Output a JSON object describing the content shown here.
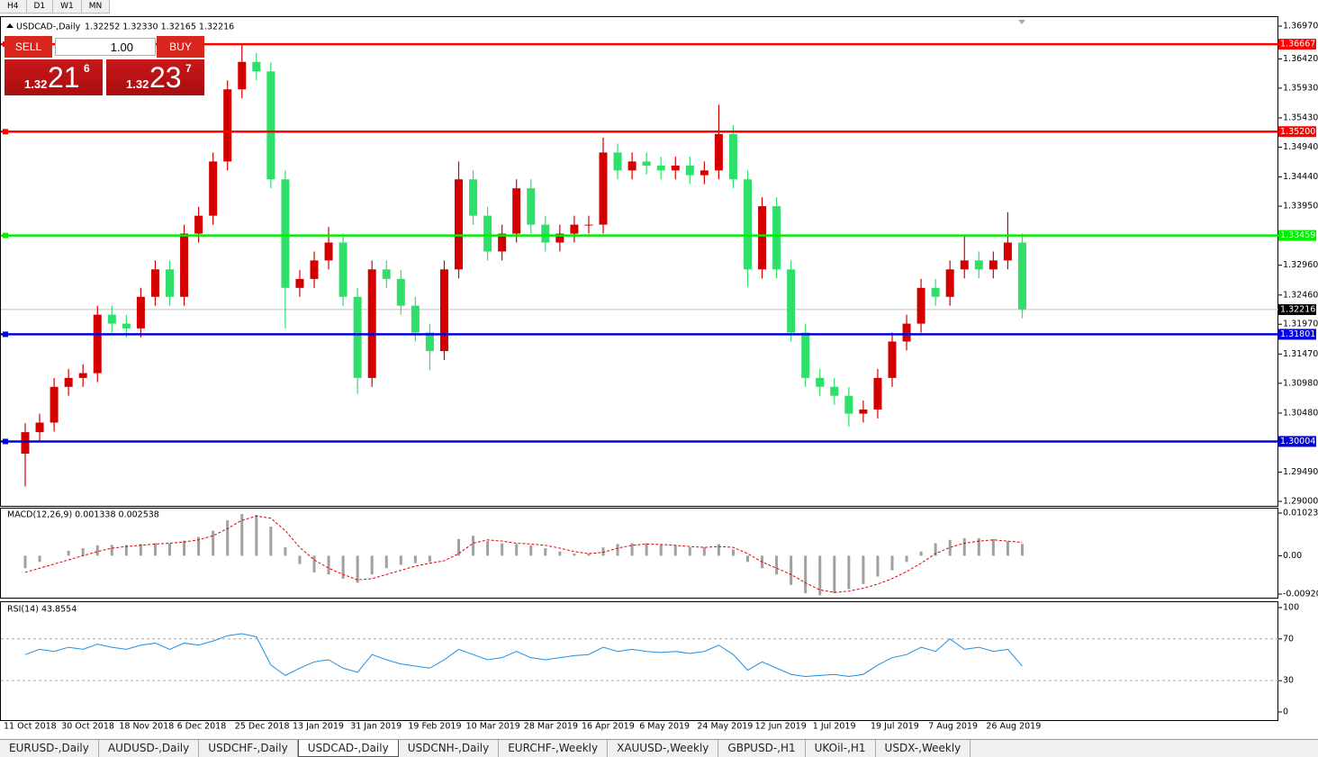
{
  "timeframes": [
    "H4",
    "D1",
    "W1",
    "MN"
  ],
  "trade_panel": {
    "sell": "SELL",
    "lot": "1.00",
    "buy": "BUY",
    "bid": {
      "big": "1.32",
      "main": "21",
      "pip": "6"
    },
    "ask": {
      "big": "1.32",
      "main": "23",
      "pip": "7"
    }
  },
  "tabs": [
    "EURUSD-,Daily",
    "AUDUSD-,Daily",
    "USDCHF-,Daily",
    "USDCAD-,Daily",
    "USDCNH-,Daily",
    "EURCHF-,Weekly",
    "XAUUSD-,Weekly",
    "GBPUSD-,H1",
    "UKOil-,H1",
    "USDX-,Weekly"
  ],
  "active_tab": 3,
  "chart_data": [
    {
      "type": "candlestick",
      "title": "USDCAD-,Daily",
      "quote": "1.32252 1.32330 1.32165 1.32216",
      "categories": [
        "11 Oct 2018",
        null,
        null,
        null,
        "30 Oct 2018",
        null,
        null,
        null,
        "18 Nov 2018",
        null,
        null,
        null,
        "6 Dec 2018",
        null,
        null,
        null,
        "25 Dec 2018",
        null,
        null,
        null,
        "13 Jan 2019",
        null,
        null,
        null,
        "31 Jan 2019",
        null,
        null,
        null,
        "19 Feb 2019",
        null,
        null,
        null,
        "10 Mar 2019",
        null,
        null,
        null,
        "28 Mar 2019",
        null,
        null,
        null,
        "16 Apr 2019",
        null,
        null,
        null,
        "6 May 2019",
        null,
        null,
        null,
        "24 May 2019",
        null,
        null,
        null,
        "12 Jun 2019",
        null,
        null,
        null,
        "1 Jul 2019",
        null,
        null,
        null,
        "19 Jul 2019",
        null,
        null,
        null,
        "7 Aug 2019",
        null,
        null,
        null,
        "26 Aug 2019",
        null
      ],
      "open": [
        1.298,
        1.3016,
        1.3032,
        1.3092,
        1.3107,
        1.3115,
        1.3213,
        1.3198,
        1.319,
        1.3243,
        1.3289,
        1.3243,
        1.3349,
        1.3379,
        1.347,
        1.3591,
        1.3637,
        1.3621,
        1.344,
        1.3258,
        1.3273,
        1.3304,
        1.3334,
        1.3243,
        1.3107,
        1.3289,
        1.3273,
        1.3228,
        1.3183,
        1.3152,
        1.3289,
        1.344,
        1.3379,
        1.3319,
        1.3349,
        1.3425,
        1.3364,
        1.3334,
        1.3349,
        1.3364,
        1.3364,
        1.3485,
        1.3455,
        1.347,
        1.3463,
        1.3455,
        1.3463,
        1.3447,
        1.3455,
        1.3516,
        1.344,
        1.3289,
        1.3395,
        1.3289,
        1.3183,
        1.3107,
        1.3092,
        1.3077,
        1.3047,
        1.3054,
        1.3107,
        1.3168,
        1.3198,
        1.3258,
        1.3243,
        1.3289,
        1.3304,
        1.3289,
        1.3304,
        1.3334
      ],
      "high": [
        1.3031,
        1.3047,
        1.3107,
        1.3122,
        1.313,
        1.3228,
        1.3228,
        1.3213,
        1.3258,
        1.3304,
        1.3304,
        1.3364,
        1.3394,
        1.3485,
        1.3606,
        1.3667,
        1.3652,
        1.3636,
        1.3455,
        1.3288,
        1.3319,
        1.336,
        1.3349,
        1.3258,
        1.3304,
        1.3304,
        1.3288,
        1.3243,
        1.3198,
        1.3304,
        1.347,
        1.3455,
        1.3394,
        1.3364,
        1.344,
        1.344,
        1.3379,
        1.3364,
        1.3379,
        1.3379,
        1.351,
        1.35,
        1.3485,
        1.3485,
        1.3478,
        1.3478,
        1.3478,
        1.347,
        1.3565,
        1.3531,
        1.3455,
        1.341,
        1.341,
        1.3304,
        1.3198,
        1.3122,
        1.3107,
        1.3092,
        1.3069,
        1.3122,
        1.3183,
        1.3213,
        1.3273,
        1.3273,
        1.3304,
        1.3345,
        1.3319,
        1.3319,
        1.3385,
        1.3349
      ],
      "low": [
        1.2925,
        1.3001,
        1.3017,
        1.3077,
        1.3092,
        1.31,
        1.3183,
        1.3175,
        1.3175,
        1.3228,
        1.3228,
        1.3228,
        1.3334,
        1.3364,
        1.3455,
        1.3576,
        1.3606,
        1.3425,
        1.319,
        1.3243,
        1.3258,
        1.3289,
        1.3228,
        1.308,
        1.3092,
        1.3258,
        1.3213,
        1.3168,
        1.312,
        1.3137,
        1.3274,
        1.3364,
        1.3304,
        1.3304,
        1.3334,
        1.3349,
        1.3319,
        1.3319,
        1.3334,
        1.3349,
        1.3349,
        1.344,
        1.344,
        1.3448,
        1.344,
        1.344,
        1.3432,
        1.3432,
        1.344,
        1.3425,
        1.326,
        1.3274,
        1.3274,
        1.3168,
        1.3092,
        1.3077,
        1.3062,
        1.3025,
        1.3032,
        1.3039,
        1.3092,
        1.3153,
        1.3183,
        1.3228,
        1.3228,
        1.3274,
        1.3274,
        1.3274,
        1.3289,
        1.3207
      ],
      "close": [
        1.3016,
        1.3032,
        1.3092,
        1.3107,
        1.3115,
        1.3213,
        1.3198,
        1.319,
        1.3243,
        1.3289,
        1.3243,
        1.3349,
        1.3379,
        1.347,
        1.3591,
        1.3637,
        1.3621,
        1.344,
        1.3258,
        1.3273,
        1.3304,
        1.3334,
        1.3243,
        1.3107,
        1.3289,
        1.3273,
        1.3228,
        1.3183,
        1.3152,
        1.3289,
        1.344,
        1.3379,
        1.3319,
        1.3349,
        1.3425,
        1.3364,
        1.3334,
        1.3349,
        1.3364,
        1.3364,
        1.3485,
        1.3455,
        1.347,
        1.3463,
        1.3455,
        1.3463,
        1.3447,
        1.3455,
        1.3516,
        1.344,
        1.3289,
        1.3395,
        1.3289,
        1.3183,
        1.3107,
        1.3092,
        1.3077,
        1.3047,
        1.3054,
        1.3107,
        1.3168,
        1.3198,
        1.3258,
        1.3243,
        1.3289,
        1.3304,
        1.3289,
        1.3304,
        1.3334,
        1.3222
      ],
      "up_color": "#d40000",
      "down_color": "#2ee06a",
      "ylim": [
        1.28924,
        1.37121
      ],
      "yticks": [
        {
          "value": 1.3697,
          "label": "1.36970"
        },
        {
          "value": 1.3642,
          "label": "1.36420"
        },
        {
          "value": 1.3593,
          "label": "1.35930"
        },
        {
          "value": 1.3543,
          "label": "1.35430"
        },
        {
          "value": 1.3494,
          "label": "1.34940"
        },
        {
          "value": 1.3444,
          "label": "1.34440"
        },
        {
          "value": 1.3395,
          "label": "1.33950"
        },
        {
          "value": 1.3296,
          "label": "1.32960"
        },
        {
          "value": 1.3246,
          "label": "1.32460"
        },
        {
          "value": 1.3197,
          "label": "1.31970"
        },
        {
          "value": 1.3147,
          "label": "1.31470"
        },
        {
          "value": 1.3098,
          "label": "1.30980"
        },
        {
          "value": 1.3048,
          "label": "1.30480"
        },
        {
          "value": 1.2949,
          "label": "1.29490"
        },
        {
          "value": 1.29,
          "label": "1.29000"
        }
      ],
      "levels": [
        {
          "value": 1.36667,
          "color": "#ff0000"
        },
        {
          "value": 1.352,
          "label": "1.35200",
          "color": "#ff0000"
        },
        {
          "value": 1.33459,
          "color": "#00ee00"
        },
        {
          "value": 1.31801,
          "color": "#0000dd"
        },
        {
          "value": 1.30004,
          "color": "#0000dd"
        }
      ],
      "last": {
        "value": 1.32216,
        "color": "#c0c0c0"
      }
    },
    {
      "type": "macd",
      "title": "MACD(12,26,9) 0.001338 0.002538",
      "histogram": {
        "color": "#a0a0a0",
        "values": [
          -0.003,
          -0.0015,
          0.0,
          0.0012,
          0.0018,
          0.0025,
          0.0026,
          0.0026,
          0.0028,
          0.003,
          0.003,
          0.0036,
          0.0045,
          0.006,
          0.0085,
          0.01,
          0.0098,
          0.007,
          0.002,
          -0.002,
          -0.004,
          -0.0045,
          -0.0055,
          -0.0065,
          -0.0045,
          -0.003,
          -0.0022,
          -0.0018,
          -0.0015,
          0.0,
          0.004,
          0.0048,
          0.0035,
          0.003,
          0.0028,
          0.0025,
          0.0018,
          0.001,
          0.0005,
          0.0005,
          0.002,
          0.0028,
          0.003,
          0.003,
          0.0026,
          0.0024,
          0.002,
          0.002,
          0.0028,
          0.0015,
          -0.0015,
          -0.003,
          -0.0045,
          -0.007,
          -0.009,
          -0.0095,
          -0.009,
          -0.008,
          -0.0068,
          -0.005,
          -0.0035,
          -0.0015,
          0.001,
          0.003,
          0.0038,
          0.0042,
          0.0042,
          0.004,
          0.0035,
          0.0028
        ]
      },
      "signal": {
        "color": "#dd0000",
        "values": [
          -0.004,
          -0.003,
          -0.002,
          -0.001,
          0.0,
          0.001,
          0.0018,
          0.0022,
          0.0025,
          0.0028,
          0.003,
          0.0033,
          0.0038,
          0.0048,
          0.0065,
          0.0085,
          0.0095,
          0.009,
          0.006,
          0.002,
          -0.001,
          -0.003,
          -0.0045,
          -0.0058,
          -0.0055,
          -0.0045,
          -0.0035,
          -0.0025,
          -0.0018,
          -0.0012,
          0.0005,
          0.003,
          0.0038,
          0.0035,
          0.003,
          0.0028,
          0.0025,
          0.0018,
          0.001,
          0.0005,
          0.0008,
          0.0018,
          0.0025,
          0.0028,
          0.0027,
          0.0025,
          0.0022,
          0.002,
          0.0022,
          0.002,
          0.0005,
          -0.0015,
          -0.003,
          -0.0045,
          -0.0065,
          -0.0082,
          -0.0088,
          -0.0085,
          -0.0078,
          -0.0068,
          -0.0055,
          -0.0038,
          -0.0018,
          0.0005,
          0.002,
          0.003,
          0.0035,
          0.0038,
          0.0035,
          0.0032
        ]
      },
      "ylim": [
        -0.010067,
        0.011311
      ],
      "yticks": [
        0.010231,
        {
          "value": 0,
          "label": "0.00"
        },
        -0.009203
      ]
    },
    {
      "type": "line",
      "title": "RSI(14) 43.8554",
      "color": "#1e8fe0",
      "values": [
        55,
        60,
        58,
        62,
        60,
        65,
        62,
        60,
        64,
        66,
        60,
        66,
        64,
        68,
        73,
        75,
        72,
        45,
        35,
        42,
        48,
        50,
        42,
        38,
        55,
        50,
        46,
        44,
        42,
        50,
        60,
        55,
        50,
        52,
        58,
        52,
        50,
        52,
        54,
        55,
        62,
        58,
        60,
        58,
        57,
        58,
        56,
        58,
        64,
        55,
        40,
        48,
        42,
        36,
        34,
        35,
        36,
        34,
        36,
        45,
        52,
        55,
        62,
        58,
        70,
        60,
        62,
        58,
        60,
        44
      ],
      "ylim": [
        -7.8,
        105.2
      ],
      "yticks": [
        100,
        70,
        30,
        0
      ],
      "dashed_levels": [
        70,
        30
      ]
    }
  ]
}
